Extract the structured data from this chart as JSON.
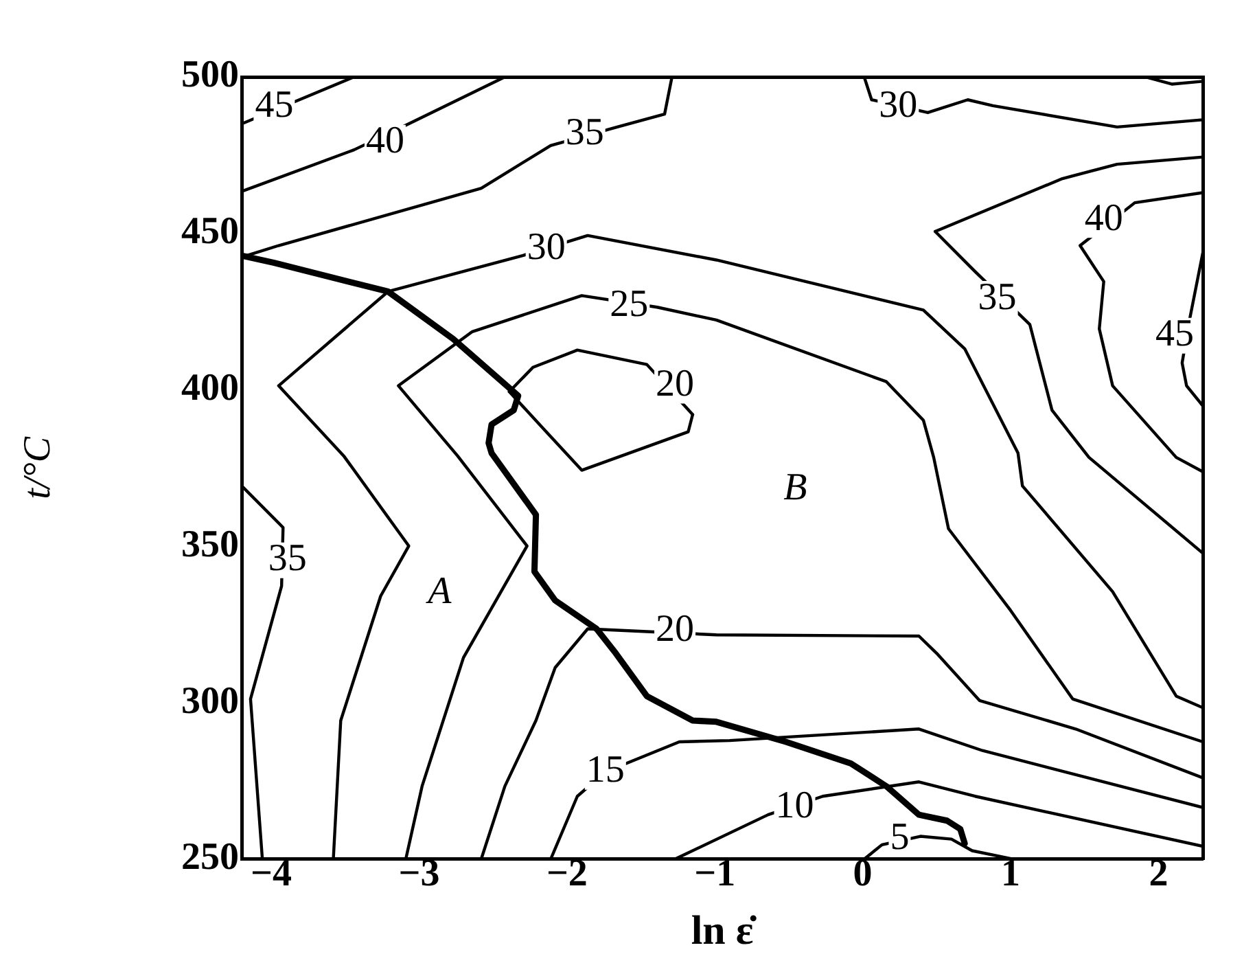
{
  "chart_data": {
    "type": "line",
    "xlabel": "ln ε̇",
    "ylabel": "t/°C",
    "xlim": [
      -4.2,
      2.3
    ],
    "ylim": [
      250,
      500
    ],
    "xticks": [
      -4,
      -3,
      -2,
      -1,
      0,
      1,
      2
    ],
    "yticks": [
      250,
      300,
      350,
      400,
      450,
      500
    ],
    "grid": false,
    "legend": false,
    "marker": "none",
    "line_style": "solid",
    "series": [
      {
        "color": "#000000",
        "x": [
          -4.2,
          -3.98,
          -3.21,
          -2.77,
          -2.33,
          -2.36,
          -2.51,
          -2.53,
          -2.51,
          -2.21,
          -2.22,
          -2.08,
          -1.8,
          -1.67,
          -1.46,
          -1.15,
          -0.99,
          -0.52,
          -0.08,
          0.16,
          0.38,
          0.57,
          0.66,
          0.69
        ],
        "values": [
          442.9,
          440.6,
          431.4,
          416.3,
          398.1,
          393.5,
          388.9,
          383,
          379.8,
          360.1,
          341.9,
          332.7,
          323.6,
          315.8,
          302.1,
          294.3,
          293.9,
          287.5,
          280.6,
          273.3,
          264.2,
          262.3,
          259.6,
          255
        ]
      },
      {
        "color": "#000000",
        "x": [
          -4.2,
          -3.44
        ],
        "values": [
          485,
          500
        ]
      },
      {
        "color": "#000000",
        "x": [
          -4.2,
          -3.44,
          -3.07,
          -2.42
        ],
        "values": [
          463.4,
          476.7,
          485,
          500
        ]
      },
      {
        "color": "#000000",
        "x": [
          -4.2,
          -3.95,
          -2.58,
          -2.11,
          -1.66,
          -1.34,
          -1.29
        ],
        "values": [
          442.4,
          446.1,
          464.4,
          478.1,
          484,
          488.1,
          500
        ]
      },
      {
        "color": "#000000",
        "x": [
          -3.58,
          -3.53,
          -3.26,
          -3.07,
          -3.51,
          -3.95,
          -3.21,
          -2.3,
          -1.86,
          -0.99,
          0.41,
          0.69,
          1.05,
          1.08,
          1.69,
          2.12,
          2.3
        ],
        "values": [
          250,
          294.3,
          334.1,
          350.1,
          378.9,
          401.3,
          431.4,
          442.9,
          449.3,
          441.5,
          425.5,
          413.1,
          379.8,
          369.3,
          335.5,
          302.1,
          298.4
        ]
      },
      {
        "color": "#000000",
        "x": [
          -3.09,
          -2.98,
          -2.7,
          -2.27,
          -2.74,
          -3.14,
          -2.64,
          -1.9,
          -1.39,
          -0.99,
          0.16,
          0.41,
          0.48,
          0.58,
          1,
          1.42,
          2.3
        ],
        "values": [
          250,
          273.3,
          314.4,
          350.1,
          378.9,
          401.3,
          418.6,
          430.1,
          426.4,
          422.3,
          402.6,
          390.3,
          378.4,
          355.6,
          329.5,
          301.2,
          287.5
        ]
      },
      {
        "color": "#000000",
        "x": [
          -2.39,
          -2.23,
          -1.93,
          -1.46,
          -1.15
        ],
        "values": [
          399.4,
          407.2,
          412.7,
          408.1,
          392.1
        ]
      },
      {
        "color": "#000000",
        "x": [
          -2.39,
          -2.16,
          -1.9,
          -1.18,
          -1.15
        ],
        "values": [
          399.4,
          387.6,
          374.3,
          386.6,
          392.1
        ]
      },
      {
        "color": "#000000",
        "x": [
          -2.58,
          -2.42,
          -2.21,
          -2.08,
          -1.86,
          -0.99,
          0.38,
          0.5,
          0.79,
          1.44,
          2.3
        ],
        "values": [
          250,
          273.3,
          294.3,
          311.2,
          323.6,
          321.7,
          321.3,
          315.8,
          300.7,
          291.6,
          276
        ]
      },
      {
        "color": "#000000",
        "x": [
          -2.11,
          -1.93,
          -1.74,
          -1.24,
          -0.9,
          0.38,
          0.81,
          2.3
        ],
        "values": [
          250,
          270.1,
          277.9,
          287.5,
          287.9,
          291.6,
          284.7,
          266.5
        ]
      },
      {
        "color": "#000000",
        "x": [
          -1.27,
          -0.64,
          -0.27,
          0.38,
          0.76,
          2.3
        ],
        "values": [
          250,
          264.2,
          270.1,
          274.7,
          270.1,
          254.1
        ]
      },
      {
        "color": "#000000",
        "x": [
          0.01,
          0.13,
          0.39,
          0.6,
          0.74,
          1.02
        ],
        "values": [
          250,
          254.6,
          257.3,
          256.4,
          252.7,
          250
        ]
      },
      {
        "color": "#000000",
        "x": [
          -4.2,
          -3.92,
          -3.93,
          -4.14,
          -4.06
        ],
        "values": [
          369.3,
          356,
          337.3,
          301.2,
          250
        ]
      },
      {
        "color": "#000000",
        "x": [
          0.01,
          0.06,
          0.44,
          0.71,
          0.88,
          1.72,
          2.3
        ],
        "values": [
          500,
          492.7,
          488.6,
          492.7,
          490.8,
          484,
          486.3
        ]
      },
      {
        "color": "#000000",
        "x": [
          1.91,
          2.09,
          2.3
        ],
        "values": [
          500,
          497.7,
          498.6
        ]
      },
      {
        "color": "#000000",
        "x": [
          0.49,
          1.35,
          1.72,
          2.3
        ],
        "values": [
          450.6,
          467.5,
          472.1,
          474.4
        ]
      },
      {
        "color": "#000000",
        "x": [
          0.49,
          0.76,
          1.13,
          1.28,
          1.53,
          2.3
        ],
        "values": [
          450.6,
          437.8,
          420.9,
          393.5,
          378.4,
          347.8
        ]
      },
      {
        "color": "#000000",
        "x": [
          2.3,
          1.84,
          1.47,
          1.63,
          1.6,
          1.69,
          2.12,
          2.3
        ],
        "values": [
          463,
          459.8,
          446.1,
          434.6,
          419.5,
          401.3,
          378.4,
          373.8
        ]
      },
      {
        "color": "#000000",
        "x": [
          2.3,
          2.21,
          2.16,
          2.19,
          2.3
        ],
        "values": [
          443.8,
          422.3,
          408.6,
          401.3,
          394.9
        ]
      }
    ],
    "annotations": [
      {
        "text": "45",
        "x": -3.98,
        "y": 490.4
      },
      {
        "text": "40",
        "x": -3.23,
        "y": 479
      },
      {
        "text": "35",
        "x": -1.88,
        "y": 481.7
      },
      {
        "text": "30",
        "x": -2.14,
        "y": 445.1
      },
      {
        "text": "25",
        "x": -1.58,
        "y": 426.9
      },
      {
        "text": "20",
        "x": -1.27,
        "y": 401.3
      },
      {
        "text": "20",
        "x": -1.27,
        "y": 323.1
      },
      {
        "text": "15",
        "x": -1.74,
        "y": 277.9
      },
      {
        "text": "10",
        "x": -0.46,
        "y": 266.5
      },
      {
        "text": "5",
        "x": 0.25,
        "y": 256.4
      },
      {
        "text": "35",
        "x": -3.89,
        "y": 345.5
      },
      {
        "text": "30",
        "x": 0.24,
        "y": 490.4
      },
      {
        "text": "35",
        "x": 0.91,
        "y": 429.1
      },
      {
        "text": "40",
        "x": 1.63,
        "y": 454.3
      },
      {
        "text": "45",
        "x": 2.11,
        "y": 417.3
      },
      "A",
      "B"
    ]
  }
}
